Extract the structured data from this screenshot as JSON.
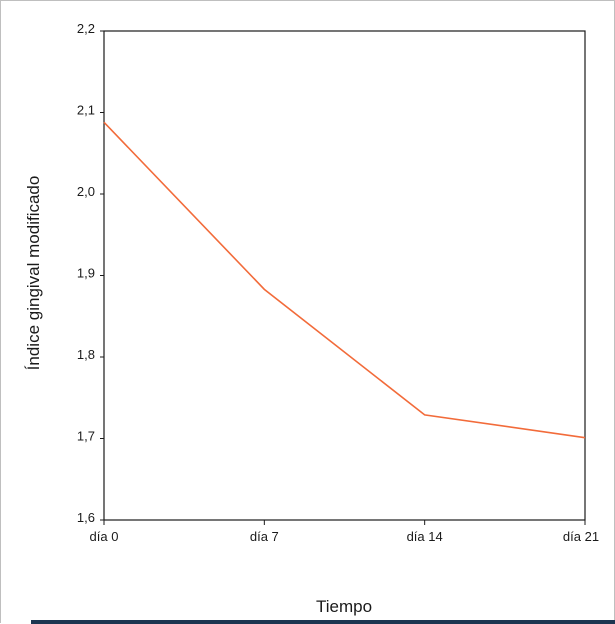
{
  "chart_data": {
    "type": "line",
    "categories": [
      "día 0",
      "día 7",
      "día 14",
      "día 21"
    ],
    "series": [
      {
        "values": [
          2.088,
          1.883,
          1.729,
          1.701
        ]
      }
    ],
    "xlabel": "Tiempo",
    "ylabel": "Índice gingival modificado",
    "ylim": [
      1.6,
      2.2
    ],
    "yticks": [
      "1,6",
      "1,7",
      "1,8",
      "1,9",
      "2,0",
      "2,1",
      "2,2"
    ],
    "ytick_values": [
      1.6,
      1.7,
      1.8,
      1.9,
      2.0,
      2.1,
      2.2
    ],
    "grid": false,
    "legend": "none",
    "line_color": "#f26b3a"
  }
}
